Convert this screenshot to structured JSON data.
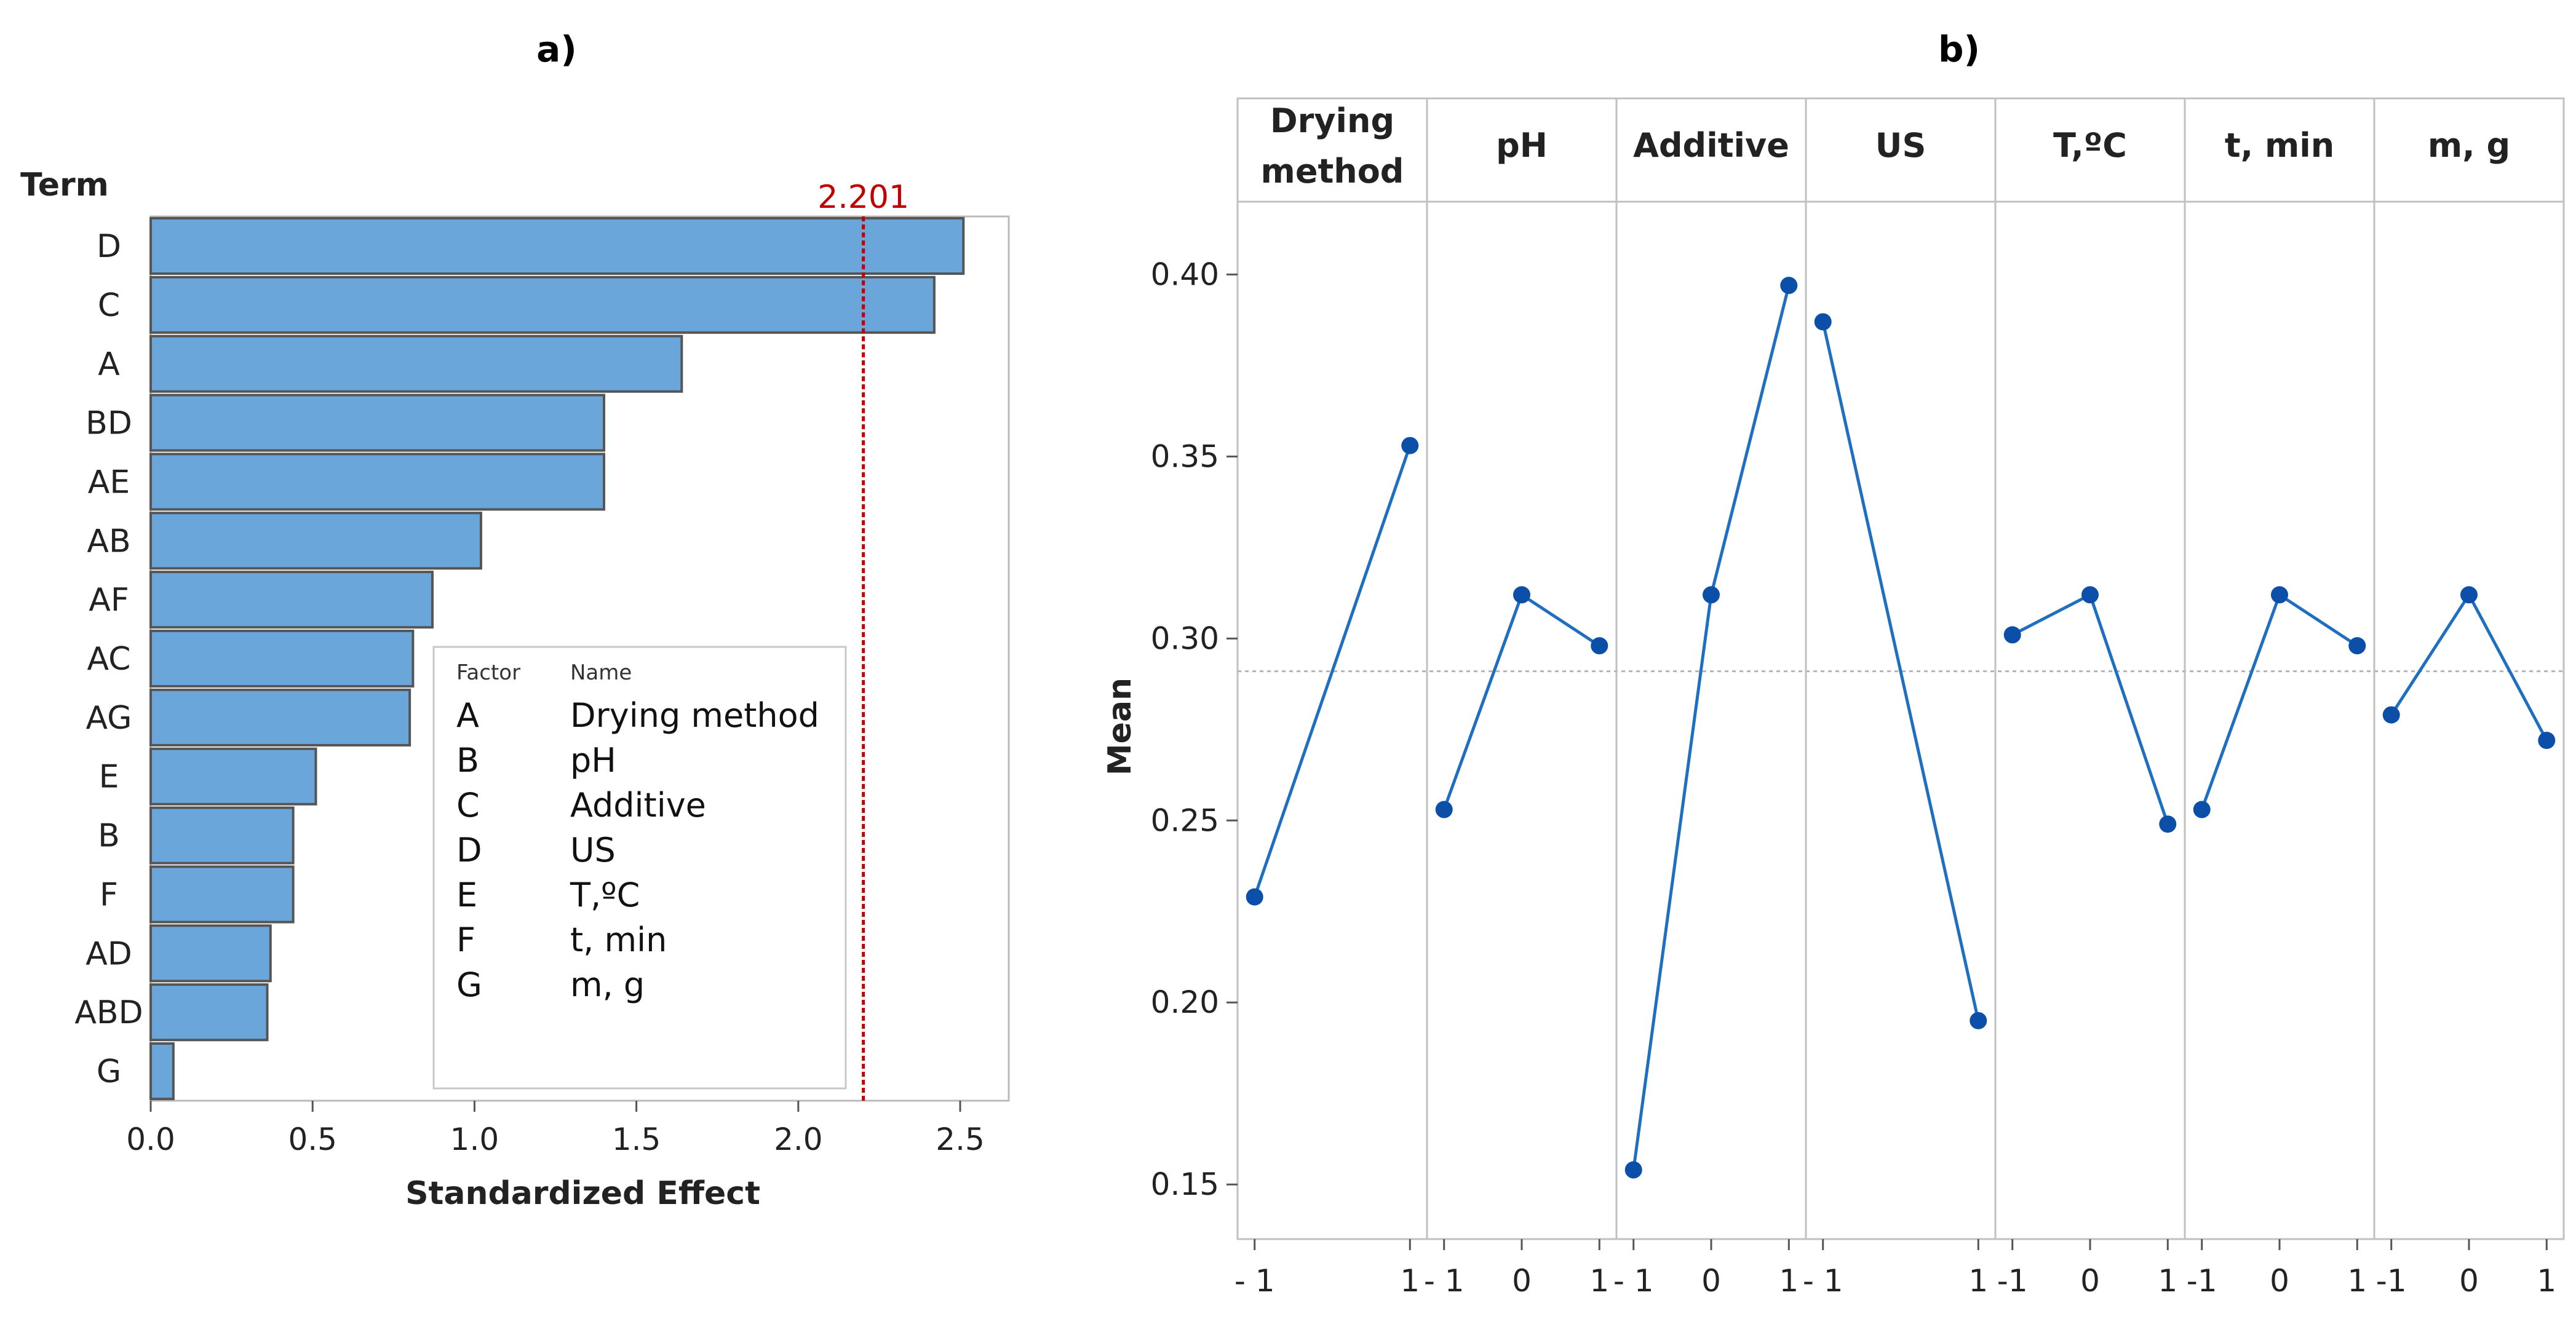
{
  "panel_a_label": "a)",
  "panel_b_label": "b)",
  "chart_data": [
    {
      "type": "bar",
      "orientation": "horizontal",
      "title": "",
      "ylabel": "Term",
      "xlabel": "Standardized Effect",
      "categories": [
        "D",
        "C",
        "A",
        "BD",
        "AE",
        "AB",
        "AF",
        "AC",
        "AG",
        "E",
        "B",
        "F",
        "AD",
        "ABD",
        "G"
      ],
      "values": [
        2.51,
        2.42,
        1.64,
        1.4,
        1.4,
        1.02,
        0.87,
        0.81,
        0.8,
        0.51,
        0.44,
        0.44,
        0.37,
        0.36,
        0.07
      ],
      "xlim": [
        0.0,
        2.65
      ],
      "xticks": [
        0.0,
        0.5,
        1.0,
        1.5,
        2.0,
        2.5
      ],
      "xtick_labels": [
        "0.0",
        "0.5",
        "1.0",
        "1.5",
        "2.0",
        "2.5"
      ],
      "reference_line": {
        "value": 2.201,
        "label": "2.201",
        "color": "#c00000"
      },
      "bar_color": "#6aa6da",
      "bar_edge_color": "#555555",
      "legend": {
        "header_factor": "Factor",
        "header_name": "Name",
        "rows": [
          {
            "factor": "A",
            "name": "Drying method"
          },
          {
            "factor": "B",
            "name": "pH"
          },
          {
            "factor": "C",
            "name": "Additive"
          },
          {
            "factor": "D",
            "name": "US"
          },
          {
            "factor": "E",
            "name": "T,ºC"
          },
          {
            "factor": "F",
            "name": "t, min"
          },
          {
            "factor": "G",
            "name": "m, g"
          }
        ],
        "placement": "bottom-right"
      }
    },
    {
      "type": "line",
      "title": "",
      "ylabel": "Mean",
      "xlabel": "",
      "ylim": [
        0.135,
        0.42
      ],
      "yticks": [
        0.15,
        0.2,
        0.25,
        0.3,
        0.35,
        0.4
      ],
      "ytick_labels": [
        "0.15",
        "0.20",
        "0.25",
        "0.30",
        "0.35",
        "0.40"
      ],
      "overall_mean": 0.291,
      "line_color": "#1f6fc0",
      "point_color": "#0b4fa8",
      "facets": [
        {
          "name": "Drying\nmethod",
          "levels": [
            "- 1",
            "1"
          ],
          "values": [
            0.229,
            0.353
          ]
        },
        {
          "name": "pH",
          "levels": [
            "- 1",
            "0",
            "1"
          ],
          "values": [
            0.253,
            0.312,
            0.298
          ]
        },
        {
          "name": "Additive",
          "levels": [
            "- 1",
            "0",
            "1"
          ],
          "values": [
            0.154,
            0.312,
            0.397
          ]
        },
        {
          "name": "US",
          "levels": [
            "- 1",
            "1"
          ],
          "values": [
            0.387,
            0.195
          ]
        },
        {
          "name": "T,ºC",
          "levels": [
            "-1",
            "0",
            "1"
          ],
          "values": [
            0.301,
            0.312,
            0.249
          ]
        },
        {
          "name": "t, min",
          "levels": [
            "-1",
            "0",
            "1"
          ],
          "values": [
            0.253,
            0.312,
            0.298
          ]
        },
        {
          "name": "m, g",
          "levels": [
            "-1",
            "0",
            "1"
          ],
          "values": [
            0.279,
            0.312,
            0.272
          ]
        }
      ]
    }
  ]
}
